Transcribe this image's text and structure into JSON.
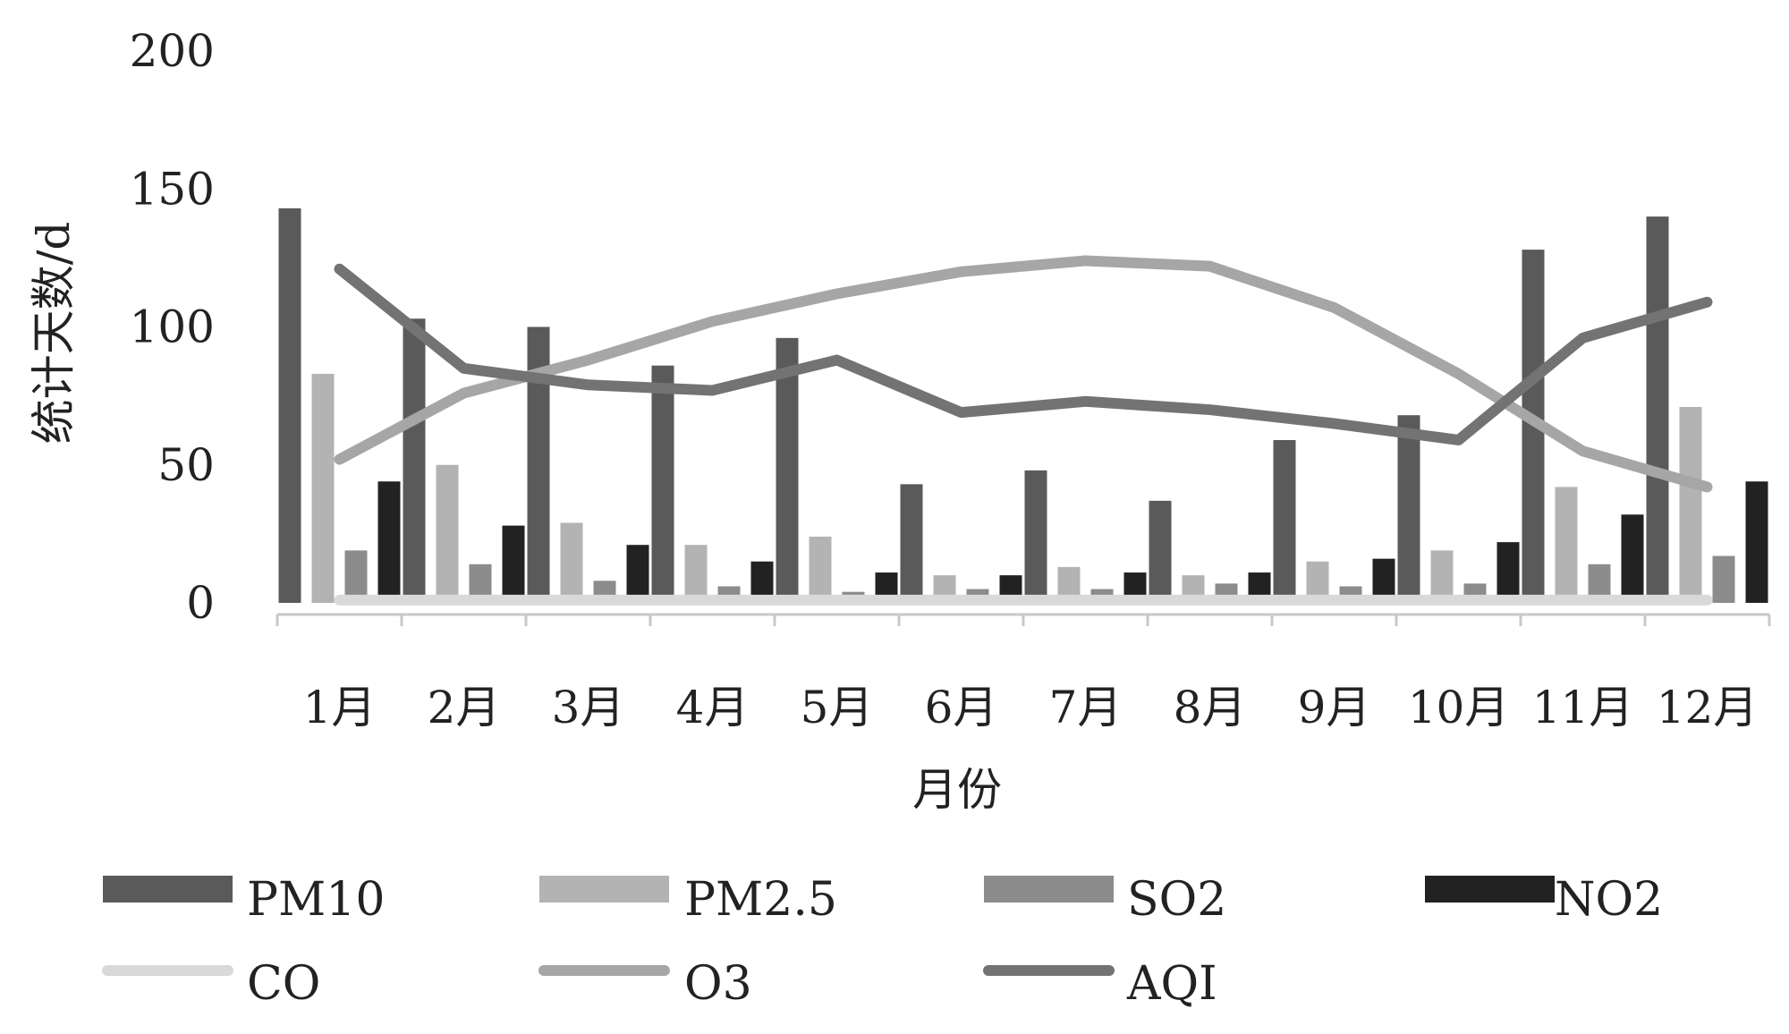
{
  "chart_data": {
    "type": "bar",
    "title": "",
    "xlabel": "月份",
    "ylabel": "统计天数/d",
    "ylim": [
      0,
      200
    ],
    "yticks": [
      "0",
      "50",
      "100",
      "150",
      "200"
    ],
    "categories": [
      "1月",
      "2月",
      "3月",
      "4月",
      "5月",
      "6月",
      "7月",
      "8月",
      "9月",
      "10月",
      "11月",
      "12月"
    ],
    "grid": false,
    "legend_position": "bottom",
    "bar_series": [
      {
        "name": "PM10",
        "color": "#5a5a5a",
        "values": [
          143,
          103,
          100,
          86,
          96,
          43,
          48,
          37,
          59,
          68,
          128,
          140
        ]
      },
      {
        "name": "PM2.5",
        "color": "#b3b3b3",
        "values": [
          83,
          50,
          29,
          21,
          24,
          10,
          13,
          10,
          15,
          19,
          42,
          71
        ]
      },
      {
        "name": "SO2",
        "color": "#8c8c8c",
        "values": [
          19,
          14,
          8,
          6,
          4,
          5,
          5,
          7,
          6,
          7,
          14,
          17
        ]
      },
      {
        "name": "NO2",
        "color": "#222222",
        "values": [
          44,
          28,
          21,
          15,
          11,
          10,
          11,
          11,
          16,
          22,
          32,
          44
        ]
      }
    ],
    "line_series": [
      {
        "name": "CO",
        "color": "#d9d9d9",
        "values": [
          1,
          1,
          1,
          1,
          1,
          1,
          1,
          1,
          1,
          1,
          1,
          1
        ]
      },
      {
        "name": "O3",
        "color": "#a6a6a6",
        "values": [
          52,
          76,
          88,
          102,
          112,
          120,
          124,
          122,
          107,
          83,
          55,
          42
        ]
      },
      {
        "name": "AQI",
        "color": "#737373",
        "values": [
          121,
          85,
          79,
          77,
          88,
          69,
          73,
          70,
          65,
          59,
          96,
          109
        ]
      }
    ]
  }
}
